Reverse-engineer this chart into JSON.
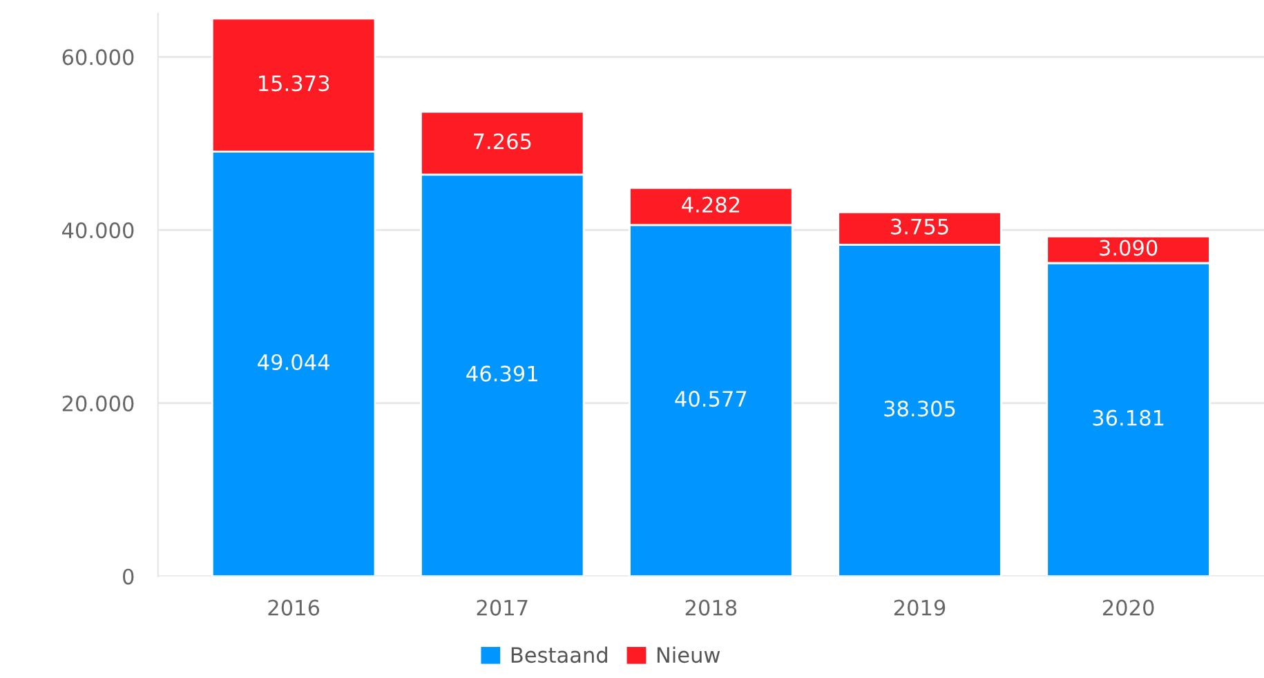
{
  "chart_data": {
    "type": "bar",
    "stacked": true,
    "categories": [
      "2016",
      "2017",
      "2018",
      "2019",
      "2020"
    ],
    "series": [
      {
        "name": "Bestaand",
        "color": "#0095ff",
        "values": [
          49044,
          46391,
          40577,
          38305,
          36181
        ],
        "value_labels": [
          "49.044",
          "46.391",
          "40.577",
          "38.305",
          "36.181"
        ]
      },
      {
        "name": "Nieuw",
        "color": "#fd1c24",
        "values": [
          15373,
          7265,
          4282,
          3755,
          3090
        ],
        "value_labels": [
          "15.373",
          "7.265",
          "4.282",
          "3.755",
          "3.090"
        ]
      }
    ],
    "ylim": [
      0,
      65000
    ],
    "yticks": [
      0,
      {
        "value": 20000,
        "label": "20.000"
      },
      {
        "value": 40000,
        "label": "40.000"
      },
      {
        "value": 60000,
        "label": "60.000"
      }
    ],
    "grid": "y",
    "legend": "bottom"
  }
}
